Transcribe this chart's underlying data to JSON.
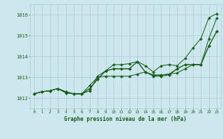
{
  "title": "Graphe pression niveau de la mer (hPa)",
  "xlabel_hours": [
    0,
    1,
    2,
    3,
    4,
    5,
    6,
    7,
    8,
    9,
    10,
    11,
    12,
    13,
    14,
    15,
    16,
    17,
    18,
    19,
    20,
    21,
    22,
    23
  ],
  "ylim": [
    1011.5,
    1016.5
  ],
  "yticks": [
    1012,
    1013,
    1014,
    1015,
    1016
  ],
  "background_color": "#cce8ee",
  "grid_color": "#aacccc",
  "line_color": "#1a5e1a",
  "title_color": "#1a5e1a",
  "series": [
    [
      1012.2,
      1012.3,
      1012.35,
      1012.45,
      1012.3,
      1012.2,
      1012.2,
      1012.35,
      1013.05,
      1013.3,
      1013.6,
      1013.6,
      1013.65,
      1013.75,
      1013.55,
      1013.25,
      1013.55,
      1013.6,
      1013.55,
      1013.9,
      1014.4,
      1014.85,
      1015.85,
      1016.05
    ],
    [
      1012.2,
      1012.3,
      1012.35,
      1012.45,
      1012.3,
      1012.2,
      1012.2,
      1012.6,
      1013.0,
      1013.05,
      1013.05,
      1013.05,
      1013.05,
      1013.15,
      1013.25,
      1013.1,
      1013.1,
      1013.15,
      1013.2,
      1013.4,
      1013.6,
      1013.6,
      1014.85,
      1015.85
    ],
    [
      1012.2,
      1012.3,
      1012.35,
      1012.45,
      1012.25,
      1012.2,
      1012.2,
      1012.45,
      1012.9,
      1013.3,
      1013.4,
      1013.4,
      1013.4,
      1013.75,
      1013.25,
      1013.1,
      1013.1,
      1013.15,
      1013.4,
      1013.6,
      1013.6,
      1013.6,
      1014.5,
      1015.2
    ],
    [
      1012.2,
      1012.3,
      1012.35,
      1012.45,
      1012.25,
      1012.2,
      1012.2,
      1012.45,
      1012.9,
      1013.3,
      1013.4,
      1013.4,
      1013.4,
      1013.75,
      1013.25,
      1013.05,
      1013.05,
      1013.1,
      1013.4,
      1013.6,
      1013.6,
      1013.6,
      1014.5,
      1015.2
    ]
  ]
}
